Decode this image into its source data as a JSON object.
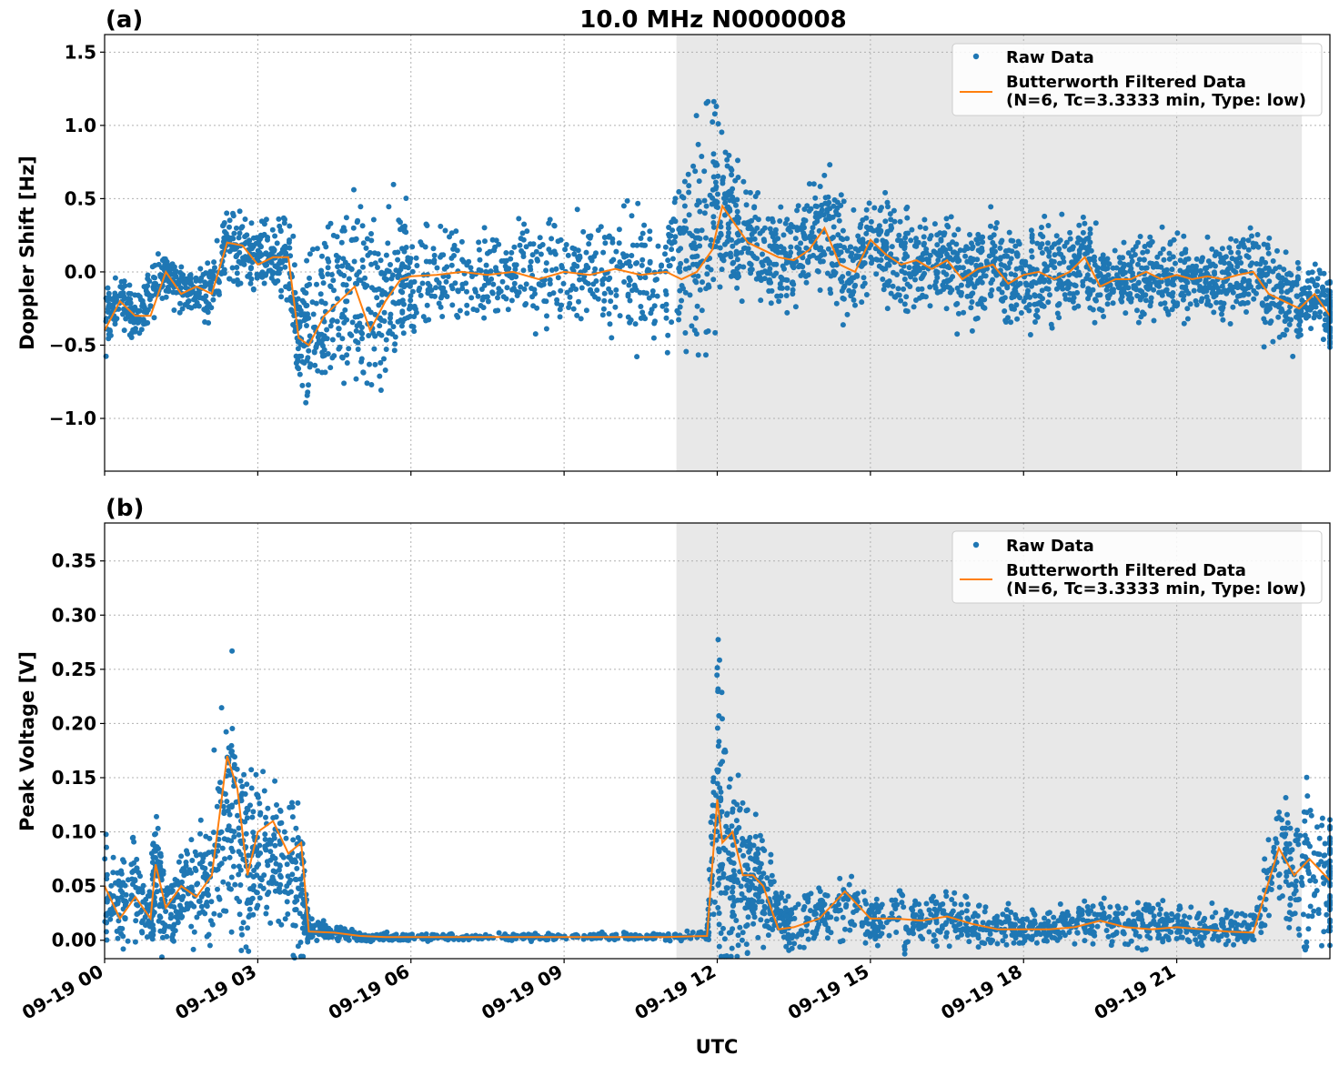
{
  "figure": {
    "title": "10.0 MHz N0000008",
    "xlabel": "UTC",
    "colors": {
      "raw": "#1f77b4",
      "filtered": "#ff7f0e",
      "shade": "#e8e8e8"
    }
  },
  "chart_data": [
    {
      "type": "scatter",
      "panel_label": "(a)",
      "title": "10.0 MHz N0000008",
      "xlabel": "",
      "ylabel": "Doppler Shift [Hz]",
      "xlim": [
        0,
        24
      ],
      "ylim": [
        -1.36,
        1.62
      ],
      "xticks": [
        0,
        3,
        6,
        9,
        12,
        15,
        18,
        21
      ],
      "xtick_labels": [
        "09-19 00",
        "09-19 03",
        "09-19 06",
        "09-19 09",
        "09-19 12",
        "09-19 15",
        "09-19 18",
        "09-19 21"
      ],
      "yticks": [
        1.5,
        1.0,
        0.5,
        0.0,
        -0.5,
        -1.0
      ],
      "ytick_labels": [
        "1.5",
        "1.0",
        "0.5",
        "0.0",
        "−0.5",
        "−1.0"
      ],
      "shaded_x": [
        11.2,
        23.45
      ],
      "grid": true,
      "legend_position": "top-right",
      "series": [
        {
          "name": "Raw Data",
          "kind": "scatter",
          "x": [
            0.0,
            0.3,
            0.6,
            0.9,
            1.2,
            1.5,
            1.8,
            2.1,
            2.4,
            2.7,
            3.0,
            3.3,
            3.6,
            3.8,
            4.0,
            4.3,
            4.6,
            4.9,
            5.2,
            5.5,
            5.8,
            6.0,
            6.5,
            7.0,
            7.5,
            8.0,
            8.5,
            9.0,
            9.5,
            10.0,
            10.5,
            11.0,
            11.3,
            11.6,
            11.9,
            12.1,
            12.3,
            12.6,
            12.9,
            13.2,
            13.5,
            13.8,
            14.1,
            14.4,
            14.7,
            15.0,
            15.3,
            15.6,
            15.9,
            16.2,
            16.5,
            16.8,
            17.1,
            17.4,
            17.7,
            18.0,
            18.3,
            18.6,
            18.9,
            19.2,
            19.5,
            19.8,
            20.1,
            20.4,
            20.7,
            21.0,
            21.3,
            21.6,
            21.9,
            22.2,
            22.5,
            22.8,
            23.1,
            23.4,
            23.7,
            24.0
          ],
          "y": [
            -0.35,
            -0.2,
            -0.3,
            -0.15,
            0.0,
            -0.1,
            -0.15,
            -0.1,
            0.2,
            0.15,
            0.1,
            0.1,
            0.1,
            -0.5,
            -0.45,
            -0.3,
            -0.2,
            -0.1,
            -0.3,
            -0.2,
            -0.05,
            -0.05,
            -0.05,
            0.0,
            0.0,
            0.0,
            -0.02,
            0.0,
            0.0,
            0.0,
            -0.02,
            0.0,
            0.1,
            0.2,
            0.3,
            0.5,
            0.35,
            0.25,
            0.15,
            0.1,
            0.1,
            0.2,
            0.3,
            0.1,
            0.0,
            0.2,
            0.15,
            0.1,
            0.05,
            0.05,
            0.1,
            -0.05,
            0.0,
            0.05,
            -0.05,
            -0.05,
            0.0,
            -0.05,
            0.0,
            0.1,
            -0.1,
            -0.05,
            -0.05,
            0.0,
            -0.05,
            -0.05,
            -0.05,
            -0.05,
            -0.05,
            -0.05,
            0.0,
            -0.1,
            -0.15,
            -0.25,
            -0.15,
            -0.3
          ],
          "spread": [
            0.2,
            0.15,
            0.15,
            0.15,
            0.15,
            0.15,
            0.1,
            0.2,
            0.2,
            0.2,
            0.2,
            0.2,
            0.25,
            0.35,
            0.45,
            0.5,
            0.6,
            0.6,
            0.55,
            0.5,
            0.5,
            0.3,
            0.3,
            0.3,
            0.3,
            0.3,
            0.35,
            0.35,
            0.35,
            0.35,
            0.4,
            0.45,
            0.55,
            0.65,
            0.7,
            0.55,
            0.4,
            0.3,
            0.3,
            0.3,
            0.3,
            0.3,
            0.35,
            0.35,
            0.3,
            0.3,
            0.3,
            0.3,
            0.3,
            0.3,
            0.3,
            0.3,
            0.3,
            0.3,
            0.3,
            0.3,
            0.3,
            0.3,
            0.3,
            0.3,
            0.25,
            0.2,
            0.2,
            0.25,
            0.25,
            0.25,
            0.2,
            0.2,
            0.2,
            0.25,
            0.25,
            0.3,
            0.3,
            0.2,
            0.2,
            0.2
          ]
        },
        {
          "name": "Butterworth Filtered Data\n(N=6, Tc=3.3333 min, Type: low)",
          "kind": "line",
          "x": [
            0.0,
            0.3,
            0.6,
            0.9,
            1.2,
            1.5,
            1.8,
            2.1,
            2.4,
            2.7,
            3.0,
            3.3,
            3.6,
            3.8,
            4.0,
            4.3,
            4.6,
            4.9,
            5.2,
            5.5,
            5.8,
            6.0,
            6.5,
            7.0,
            7.5,
            8.0,
            8.5,
            9.0,
            9.5,
            10.0,
            10.5,
            11.0,
            11.3,
            11.6,
            11.9,
            12.1,
            12.3,
            12.6,
            12.9,
            13.2,
            13.5,
            13.8,
            14.1,
            14.4,
            14.7,
            15.0,
            15.3,
            15.6,
            15.9,
            16.2,
            16.5,
            16.8,
            17.1,
            17.4,
            17.7,
            18.0,
            18.3,
            18.6,
            18.9,
            19.2,
            19.5,
            19.8,
            20.1,
            20.4,
            20.7,
            21.0,
            21.3,
            21.6,
            21.9,
            22.2,
            22.5,
            22.8,
            23.1,
            23.4,
            23.7,
            24.0
          ],
          "y": [
            -0.4,
            -0.2,
            -0.3,
            -0.3,
            0.0,
            -0.15,
            -0.1,
            -0.15,
            0.2,
            0.18,
            0.05,
            0.1,
            0.1,
            -0.45,
            -0.5,
            -0.3,
            -0.2,
            -0.1,
            -0.4,
            -0.2,
            -0.05,
            -0.03,
            -0.02,
            0.0,
            -0.02,
            0.0,
            -0.05,
            0.0,
            -0.02,
            0.02,
            -0.02,
            0.0,
            -0.05,
            0.0,
            0.15,
            0.45,
            0.35,
            0.2,
            0.15,
            0.1,
            0.08,
            0.15,
            0.3,
            0.05,
            0.0,
            0.22,
            0.12,
            0.05,
            0.08,
            0.02,
            0.08,
            -0.05,
            0.02,
            0.05,
            -0.08,
            -0.02,
            0.0,
            -0.05,
            0.0,
            0.1,
            -0.1,
            -0.05,
            -0.05,
            0.0,
            -0.05,
            -0.02,
            -0.05,
            -0.03,
            -0.05,
            -0.02,
            0.0,
            -0.15,
            -0.2,
            -0.25,
            -0.15,
            -0.3
          ]
        }
      ]
    },
    {
      "type": "scatter",
      "panel_label": "(b)",
      "title": "",
      "xlabel": "UTC",
      "ylabel": "Peak Voltage [V]",
      "xlim": [
        0,
        24
      ],
      "ylim": [
        -0.017,
        0.385
      ],
      "xticks": [
        0,
        3,
        6,
        9,
        12,
        15,
        18,
        21
      ],
      "xtick_labels": [
        "09-19 00",
        "09-19 03",
        "09-19 06",
        "09-19 09",
        "09-19 12",
        "09-19 15",
        "09-19 18",
        "09-19 21"
      ],
      "yticks": [
        0.35,
        0.3,
        0.25,
        0.2,
        0.15,
        0.1,
        0.05,
        0.0
      ],
      "ytick_labels": [
        "0.35",
        "0.30",
        "0.25",
        "0.20",
        "0.15",
        "0.10",
        "0.05",
        "0.00"
      ],
      "shaded_x": [
        11.2,
        23.45
      ],
      "grid": true,
      "legend_position": "top-right",
      "series": [
        {
          "name": "Raw Data",
          "kind": "scatter",
          "x": [
            0.0,
            0.3,
            0.6,
            0.9,
            1.0,
            1.2,
            1.5,
            1.8,
            2.1,
            2.4,
            2.6,
            2.8,
            3.0,
            3.3,
            3.6,
            3.85,
            4.0,
            4.5,
            5.0,
            5.5,
            6.0,
            7.0,
            8.0,
            9.0,
            10.0,
            11.0,
            11.8,
            12.0,
            12.1,
            12.3,
            12.5,
            12.7,
            12.9,
            13.2,
            13.5,
            14.0,
            14.5,
            15.0,
            15.5,
            16.0,
            16.5,
            17.0,
            17.5,
            18.0,
            18.5,
            19.0,
            19.5,
            20.0,
            20.5,
            21.0,
            21.5,
            22.0,
            22.5,
            23.0,
            23.3,
            23.6,
            24.0
          ],
          "y": [
            0.045,
            0.03,
            0.045,
            0.025,
            0.07,
            0.03,
            0.04,
            0.05,
            0.06,
            0.13,
            0.1,
            0.07,
            0.09,
            0.08,
            0.07,
            0.06,
            0.01,
            0.006,
            0.004,
            0.003,
            0.003,
            0.003,
            0.003,
            0.003,
            0.003,
            0.003,
            0.005,
            0.12,
            0.1,
            0.07,
            0.06,
            0.05,
            0.05,
            0.02,
            0.015,
            0.025,
            0.03,
            0.02,
            0.025,
            0.02,
            0.02,
            0.015,
            0.012,
            0.012,
            0.012,
            0.015,
            0.02,
            0.015,
            0.015,
            0.015,
            0.012,
            0.012,
            0.01,
            0.08,
            0.06,
            0.07,
            0.06
          ],
          "spread": [
            0.04,
            0.035,
            0.04,
            0.03,
            0.06,
            0.035,
            0.04,
            0.05,
            0.06,
            0.1,
            0.09,
            0.07,
            0.06,
            0.06,
            0.06,
            0.07,
            0.01,
            0.006,
            0.004,
            0.003,
            0.003,
            0.003,
            0.003,
            0.003,
            0.003,
            0.003,
            0.004,
            0.12,
            0.12,
            0.08,
            0.07,
            0.05,
            0.05,
            0.02,
            0.02,
            0.025,
            0.03,
            0.025,
            0.025,
            0.02,
            0.02,
            0.018,
            0.015,
            0.015,
            0.015,
            0.018,
            0.02,
            0.018,
            0.018,
            0.018,
            0.015,
            0.015,
            0.012,
            0.06,
            0.06,
            0.06,
            0.05
          ]
        },
        {
          "name": "Butterworth Filtered Data\n(N=6, Tc=3.3333 min, Type: low)",
          "kind": "line",
          "x": [
            0.0,
            0.3,
            0.6,
            0.9,
            1.0,
            1.2,
            1.5,
            1.8,
            2.1,
            2.4,
            2.6,
            2.8,
            3.0,
            3.3,
            3.6,
            3.85,
            4.0,
            4.5,
            5.0,
            5.5,
            6.0,
            7.0,
            8.0,
            9.0,
            10.0,
            11.0,
            11.8,
            12.0,
            12.1,
            12.3,
            12.5,
            12.7,
            12.9,
            13.2,
            13.5,
            14.0,
            14.5,
            15.0,
            15.5,
            16.0,
            16.5,
            17.0,
            17.5,
            18.0,
            18.5,
            19.0,
            19.5,
            20.0,
            20.5,
            21.0,
            21.5,
            22.0,
            22.5,
            23.0,
            23.3,
            23.6,
            24.0
          ],
          "y": [
            0.05,
            0.02,
            0.04,
            0.02,
            0.07,
            0.03,
            0.05,
            0.04,
            0.06,
            0.17,
            0.14,
            0.06,
            0.1,
            0.11,
            0.08,
            0.09,
            0.008,
            0.007,
            0.004,
            0.003,
            0.003,
            0.003,
            0.003,
            0.003,
            0.003,
            0.003,
            0.004,
            0.13,
            0.09,
            0.1,
            0.06,
            0.06,
            0.05,
            0.01,
            0.012,
            0.02,
            0.045,
            0.02,
            0.02,
            0.018,
            0.022,
            0.015,
            0.01,
            0.01,
            0.01,
            0.012,
            0.018,
            0.012,
            0.01,
            0.012,
            0.01,
            0.008,
            0.007,
            0.085,
            0.06,
            0.075,
            0.055
          ]
        }
      ]
    }
  ]
}
